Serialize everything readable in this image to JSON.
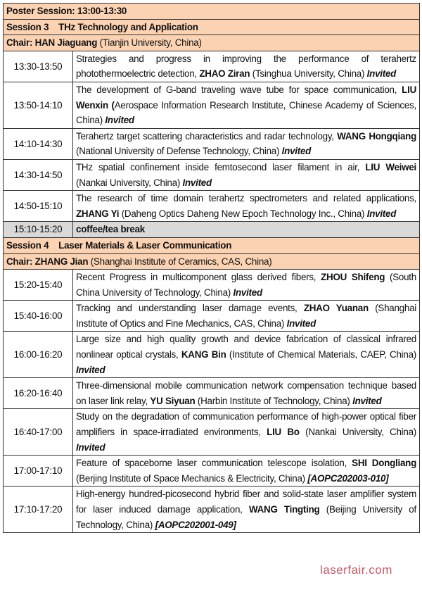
{
  "poster_session": "Poster Session: 13:00-13:30",
  "sessions": [
    {
      "title": "Session 3    THz Technology and Application",
      "chair_label": "Chair: HAN Jiaguang",
      "chair_affil": " (Tianjin University, China)",
      "talks": [
        {
          "time": "13:30-13:50",
          "title": "Strategies and progress in improving the performance of terahertz photothermoelectric detection, ",
          "speaker": "ZHAO Ziran",
          "affil": " (Tsinghua University, China) ",
          "tag": "Invited"
        },
        {
          "time": "13:50-14:10",
          "title": "The development of G-band traveling wave tube for space communication, ",
          "speaker": "LIU Wenxin (",
          "affil": "Aerospace Information Research Institute, Chinese Academy of Sciences, China) ",
          "tag": "Invited"
        },
        {
          "time": "14:10-14:30",
          "title": "Terahertz target scattering characteristics and radar technology, ",
          "speaker": "WANG Hongqiang",
          "affil": " (National University of Defense Technology, China) ",
          "tag": "Invited"
        },
        {
          "time": "14:30-14:50",
          "title": "THz spatial confinement inside femtosecond laser filament in air, ",
          "speaker": "LIU Weiwei",
          "affil": " (Nankai University, China) ",
          "tag": "Invited"
        },
        {
          "time": "14:50-15:10",
          "title": "The research of time domain terahertz spectrometers and related applications, ",
          "speaker": "ZHANG Yi",
          "affil": " (Daheng Optics Daheng New Epoch Technology Inc., China) ",
          "tag": "Invited"
        }
      ],
      "break": {
        "time": "15:10-15:20",
        "label": "coffee/tea break"
      }
    },
    {
      "title": "Session 4    Laser Materials & Laser Communication",
      "chair_label": "Chair: ZHANG Jian",
      "chair_affil": " (Shanghai Institute of Ceramics, CAS, China)",
      "talks": [
        {
          "time": "15:20-15:40",
          "title": "Recent Progress in multicomponent glass derived fibers, ",
          "speaker": "ZHOU Shifeng",
          "affil": " (South China University of Technology, China) ",
          "tag": "Invited"
        },
        {
          "time": "15:40-16:00",
          "title": "Tracking and understanding laser damage events, ",
          "speaker": "ZHAO Yuanan",
          "affil": " (Shanghai Institute of Optics and Fine Mechanics, CAS, China) ",
          "tag": "Invited"
        },
        {
          "time": "16:00-16:20",
          "title": "Large size and high quality growth and device fabrication of classical infrared nonlinear optical crystals, ",
          "speaker": "KANG Bin",
          "affil": "  (Institute of Chemical Materials, CAEP, China) ",
          "tag": "Invited"
        },
        {
          "time": "16:20-16:40",
          "title": "Three-dimensional mobile communication network compensation technique based on laser link relay, ",
          "speaker": "YU Siyuan",
          "affil": " (Harbin Institute of Technology, China) ",
          "tag": "Invited"
        },
        {
          "time": "16:40-17:00",
          "title": "Study on the degradation of communication performance of high-power optical fiber amplifiers in space-irradiated environments, ",
          "speaker": "LIU Bo",
          "affil": " (Nankai University, China) ",
          "tag": "Invited"
        },
        {
          "time": "17:00-17:10",
          "title": "Feature of spaceborne laser communication telescope isolation, ",
          "speaker": "SHI Dongliang",
          "affil": " (Berjing Institute of Space Mechanics & Electricity, China) ",
          "tag": "[AOPC202003-010]"
        },
        {
          "time": "17:10-17:20",
          "title": "High-energy hundred-picosecond hybrid fiber and solid-state laser amplifier system for laser induced damage application, ",
          "speaker": "WANG Tingting",
          "affil": " (Beijing University of Technology, China) ",
          "tag": "[AOPC202001-049]"
        }
      ]
    }
  ],
  "watermark": "laserfair.com",
  "colors": {
    "header_bg": "#fbd3b3",
    "break_bg": "#d9d9d9",
    "watermark": "#c23b4a"
  }
}
